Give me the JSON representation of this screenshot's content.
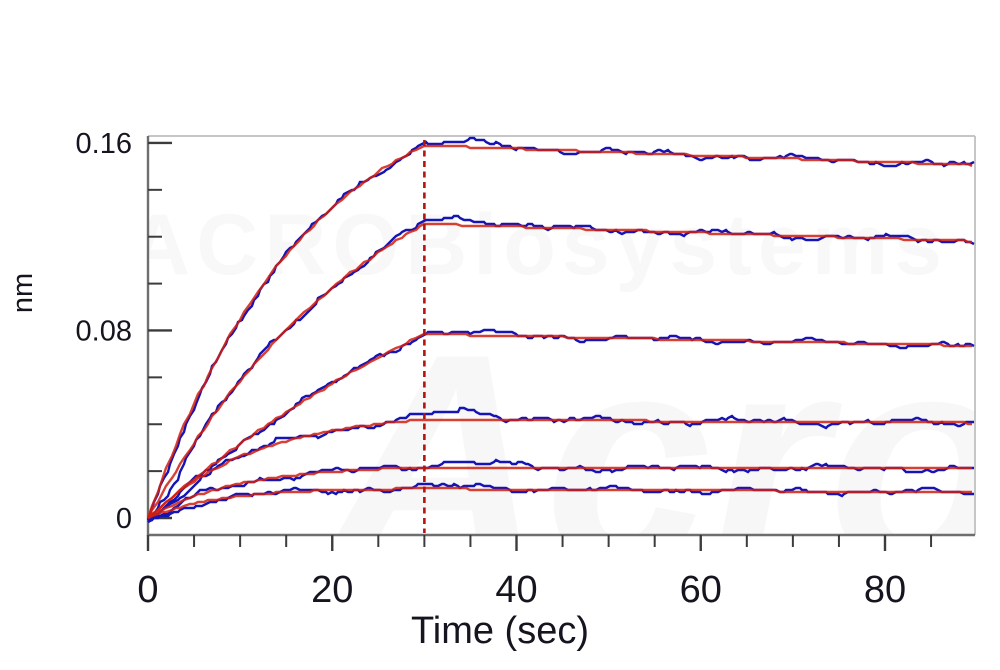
{
  "chart_data": {
    "type": "line",
    "title": "",
    "xlabel": "Time (sec)",
    "ylabel": "nm",
    "xlim": [
      0,
      89.7
    ],
    "ylim": [
      -0.007,
      0.164
    ],
    "x_ticks": [
      0,
      20,
      40,
      60,
      80
    ],
    "x_tick_labels": [
      "0",
      "20",
      "40",
      "60",
      "80"
    ],
    "x_minor_step": 5,
    "y_ticks": [
      0,
      0.08,
      0.16
    ],
    "y_tick_labels": [
      "0",
      "0.08",
      "0.16"
    ],
    "y_minor_step": 0.02,
    "grid": false,
    "legend": "none",
    "phases": [
      {
        "name": "association",
        "t_start": 0,
        "t_end": 30
      },
      {
        "name": "dissociation",
        "t_start": 30,
        "t_end": 90
      }
    ],
    "boundary_line": {
      "time_sec": 30,
      "style": "dashed",
      "color": "#b41410"
    },
    "colors": {
      "data_trace": "#1515b5",
      "fit_line": "#d02010",
      "axis": "#6e6e6e",
      "frame_light": "#c6c6c6",
      "tick": "#3c3c3c",
      "label": "#15151f"
    },
    "series": [
      {
        "name": "trace-1",
        "plateau_nm_at_30s": 0.159,
        "end_nm_at_90s": 0.1505,
        "k_obs": 0.058,
        "noise": 0.0013,
        "overshoot": 0.002
      },
      {
        "name": "trace-2",
        "plateau_nm_at_30s": 0.1255,
        "end_nm_at_90s": 0.118,
        "k_obs": 0.038,
        "noise": 0.0013,
        "overshoot": 0.0028
      },
      {
        "name": "trace-3",
        "plateau_nm_at_30s": 0.0785,
        "end_nm_at_90s": 0.0735,
        "k_obs": 0.02,
        "noise": 0.0012,
        "overshoot": 0.0012
      },
      {
        "name": "trace-4",
        "plateau_nm_at_30s": 0.042,
        "end_nm_at_90s": 0.0405,
        "k_obs": 0.085,
        "noise": 0.0014,
        "overshoot": 0.0038
      },
      {
        "name": "trace-5",
        "plateau_nm_at_30s": 0.0215,
        "end_nm_at_90s": 0.021,
        "k_obs": 0.105,
        "noise": 0.0013,
        "overshoot": 0.0026
      },
      {
        "name": "trace-6",
        "plateau_nm_at_30s": 0.0125,
        "end_nm_at_90s": 0.011,
        "k_obs": 0.13,
        "noise": 0.0012,
        "overshoot": 0.0012
      }
    ]
  },
  "watermark": {
    "primary": "Acro",
    "secondary": "ACROBiosystems"
  }
}
